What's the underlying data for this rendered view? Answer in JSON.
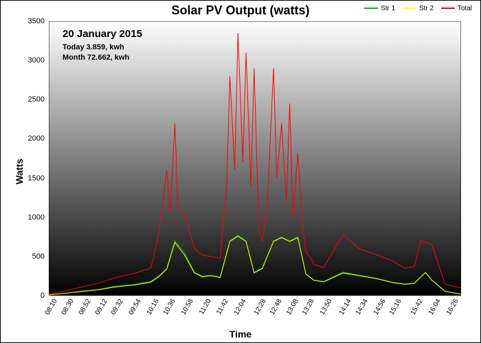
{
  "chart": {
    "type": "line",
    "title": "Solar PV Output (watts)",
    "xlabel": "Time",
    "ylabel": "Watts",
    "background_gradient": [
      "#ffffff",
      "#000000"
    ],
    "title_fontsize": 18,
    "label_fontsize": 14,
    "tick_fontsize": 10,
    "legend_position": "top-right",
    "legend_fontsize": 10,
    "line_width": 1,
    "ylim": [
      0,
      3500
    ],
    "ytick_step": 500,
    "yticks": [
      0,
      500,
      1000,
      1500,
      2000,
      2500,
      3000,
      3500
    ],
    "xrange_minutes": [
      490,
      1000
    ],
    "xtick_labels": [
      "08:10",
      "08:30",
      "08:52",
      "09:12",
      "09:32",
      "09:54",
      "10:16",
      "10:36",
      "10:58",
      "11:20",
      "11:42",
      "12:04",
      "12:28",
      "12:48",
      "13:08",
      "13:28",
      "13:50",
      "14:14",
      "14:34",
      "14:56",
      "15:16",
      "15:42",
      "16:04",
      "16:26"
    ],
    "xtick_rotation": -60,
    "info": {
      "date": "20 January 2015",
      "today": "Today 3.859, kwh",
      "month": "Month 72.662, kwh"
    },
    "series": [
      {
        "name": "Str 1",
        "color": "#00c000",
        "x": [
          490,
          510,
          532,
          552,
          572,
          594,
          616,
          626,
          636,
          646,
          658,
          670,
          680,
          690,
          702,
          714,
          724,
          734,
          744,
          754,
          768,
          778,
          788,
          798,
          808,
          818,
          830,
          854,
          874,
          896,
          916,
          930,
          942,
          956,
          964,
          980,
          1000
        ],
        "y": [
          10,
          30,
          60,
          80,
          120,
          140,
          180,
          250,
          350,
          700,
          550,
          300,
          250,
          260,
          240,
          700,
          770,
          700,
          300,
          350,
          700,
          750,
          700,
          750,
          280,
          200,
          180,
          300,
          260,
          220,
          170,
          150,
          160,
          300,
          200,
          60,
          20
        ]
      },
      {
        "name": "Str 2",
        "color": "#ffff00",
        "x": [
          490,
          510,
          532,
          552,
          572,
          594,
          616,
          626,
          636,
          646,
          658,
          670,
          680,
          690,
          702,
          714,
          724,
          734,
          744,
          754,
          768,
          778,
          788,
          798,
          808,
          818,
          830,
          854,
          874,
          896,
          916,
          930,
          942,
          956,
          964,
          980,
          1000
        ],
        "y": [
          10,
          30,
          55,
          75,
          110,
          135,
          170,
          240,
          340,
          680,
          520,
          290,
          240,
          255,
          230,
          690,
          760,
          690,
          290,
          345,
          690,
          740,
          690,
          740,
          275,
          195,
          175,
          290,
          255,
          215,
          165,
          145,
          155,
          295,
          195,
          55,
          18
        ]
      },
      {
        "name": "Total",
        "color": "#ff0000",
        "x": [
          490,
          510,
          532,
          552,
          572,
          594,
          616,
          620,
          626,
          636,
          640,
          646,
          650,
          658,
          670,
          680,
          690,
          702,
          710,
          714,
          720,
          724,
          730,
          734,
          740,
          744,
          750,
          754,
          760,
          768,
          772,
          778,
          784,
          788,
          792,
          798,
          804,
          808,
          814,
          818,
          830,
          854,
          874,
          896,
          916,
          930,
          942,
          950,
          956,
          964,
          980,
          1000
        ],
        "y": [
          20,
          60,
          115,
          160,
          230,
          280,
          350,
          500,
          800,
          1600,
          1050,
          2200,
          1100,
          1050,
          600,
          520,
          500,
          480,
          1400,
          2800,
          1600,
          3350,
          1700,
          3100,
          1400,
          2900,
          800,
          700,
          1100,
          2900,
          1500,
          2200,
          1200,
          2450,
          1000,
          1820,
          900,
          560,
          480,
          400,
          360,
          780,
          600,
          520,
          440,
          350,
          370,
          700,
          680,
          650,
          150,
          100
        ]
      }
    ]
  }
}
